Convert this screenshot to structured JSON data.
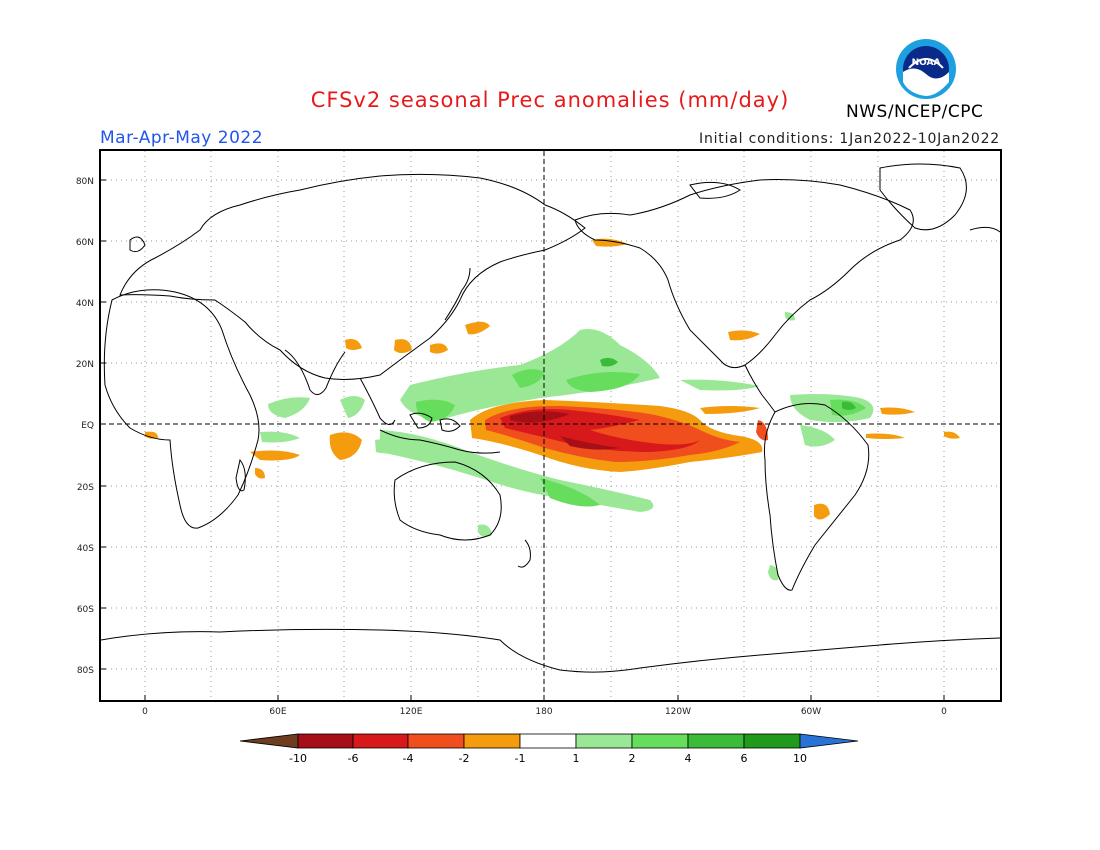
{
  "title": "CFSv2 seasonal Prec anomalies (mm/day)",
  "period": "Mar-Apr-May 2022",
  "initial_conditions": "Initial conditions: 1Jan2022-10Jan2022",
  "agency": "NWS/NCEP/CPC",
  "logo_text": "NOAA",
  "map": {
    "lat_ticks": [
      "80N",
      "60N",
      "40N",
      "20N",
      "EQ",
      "20S",
      "40S",
      "60S",
      "80S"
    ],
    "lon_ticks": [
      "0",
      "60E",
      "120E",
      "180",
      "120W",
      "60W",
      "0"
    ]
  },
  "colorbar": {
    "labels": [
      "-10",
      "-6",
      "-4",
      "-2",
      "-1",
      "1",
      "2",
      "4",
      "6",
      "10"
    ],
    "colors": {
      "lt_minus10": "#6e3d1f",
      "m10_m6": "#a50f15",
      "m6_m4": "#d7191c",
      "m4_m2": "#f04e1d",
      "m2_m1": "#f59b0e",
      "m1_1": "#ffffff",
      "p1_p2": "#9ae895",
      "p2_p4": "#66dd5c",
      "p4_p6": "#3cba3a",
      "p6_p10": "#1f9a1c",
      "gt_10": "#2a73d6"
    }
  }
}
